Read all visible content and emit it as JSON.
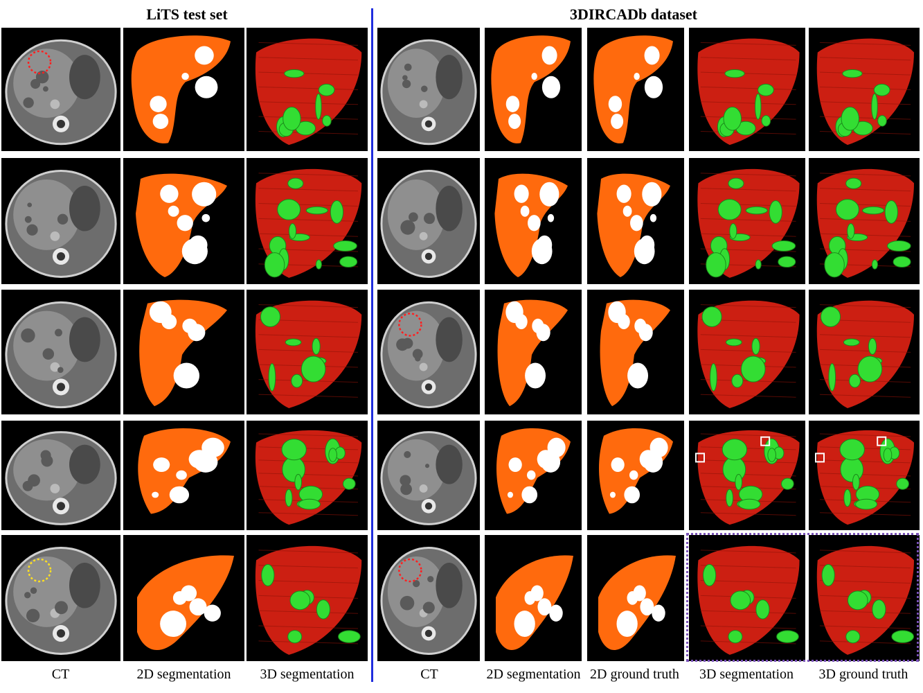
{
  "titles": {
    "lits": "LiTS test set",
    "ircad": "3DIRCADb dataset"
  },
  "column_labels": [
    "CT",
    "2D segmentation",
    "3D segmentation",
    "CT",
    "2D segmentation",
    "2D ground truth",
    "3D segmentation",
    "3D ground truth"
  ],
  "colors": {
    "liver_2d": "#ff6a0d",
    "tumor_2d": "#ffffff",
    "liver_3d": "#cc1f12",
    "tumor_3d": "#33dd33",
    "divider": "#1f2dde",
    "highlight_box": "#7a52b8",
    "circle_red": "#ff2020",
    "circle_yellow": "#ffe020"
  },
  "panel_types": [
    "ct",
    "seg2d",
    "seg3d",
    "ct",
    "seg2d",
    "seg2d",
    "seg3d",
    "seg3d"
  ],
  "annotations": [
    {
      "row": 0,
      "col": 0,
      "circle_color": "red"
    },
    {
      "row": 2,
      "col": 3,
      "circle_color": "red"
    },
    {
      "row": 4,
      "col": 0,
      "circle_color": "yellow"
    },
    {
      "row": 4,
      "col": 3,
      "circle_color": "red"
    },
    {
      "row": 3,
      "col": 6,
      "marker": "white-square"
    },
    {
      "row": 3,
      "col": 7,
      "marker": "white-square"
    }
  ],
  "highlighted_region": {
    "row": 4,
    "cols": [
      6,
      7
    ]
  }
}
